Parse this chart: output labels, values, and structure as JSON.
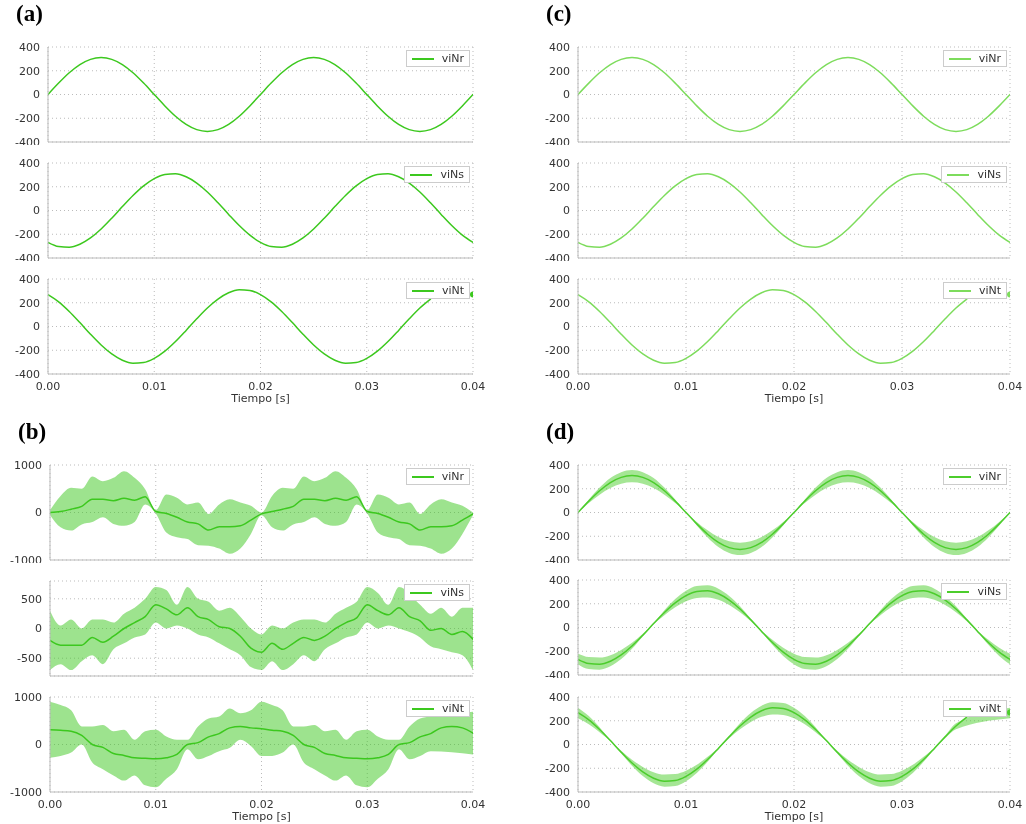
{
  "chart_data": [
    {
      "type": "line",
      "title": "(a)",
      "x": [
        0,
        0.001,
        0.002,
        0.003,
        0.004,
        0.005,
        0.006,
        0.007,
        0.008,
        0.009,
        0.01,
        0.011,
        0.012,
        0.013,
        0.014,
        0.015,
        0.016,
        0.017,
        0.018,
        0.019,
        0.02,
        0.021,
        0.022,
        0.023,
        0.024,
        0.025,
        0.026,
        0.027,
        0.028,
        0.029,
        0.03,
        0.031,
        0.032,
        0.033,
        0.034,
        0.035,
        0.036,
        0.037,
        0.038,
        0.039,
        0.04
      ],
      "xlim": [
        0,
        0.04
      ],
      "xticks": [
        0,
        0.01,
        0.02,
        0.03,
        0.04
      ],
      "ylim": [
        -400,
        400
      ],
      "yticks": [
        -400,
        -200,
        0,
        200,
        400
      ],
      "grid": true,
      "legend": "top right",
      "tick_labels": "y",
      "series": [
        {
          "name": "viNr",
          "color": "#3cc81e",
          "values": [
            0,
            96,
            183,
            252,
            296,
            311,
            296,
            252,
            183,
            96,
            0,
            -96,
            -183,
            -252,
            -296,
            -311,
            -296,
            -252,
            -183,
            -96,
            0,
            96,
            183,
            252,
            296,
            311,
            296,
            252,
            183,
            96,
            0,
            -96,
            -183,
            -252,
            -296,
            -311,
            -296,
            -252,
            -183,
            -96,
            0
          ]
        }
      ]
    },
    {
      "type": "line",
      "x": [
        0,
        0.001,
        0.002,
        0.003,
        0.004,
        0.005,
        0.006,
        0.007,
        0.008,
        0.009,
        0.01,
        0.011,
        0.012,
        0.013,
        0.014,
        0.015,
        0.016,
        0.017,
        0.018,
        0.019,
        0.02,
        0.021,
        0.022,
        0.023,
        0.024,
        0.025,
        0.026,
        0.027,
        0.028,
        0.029,
        0.03,
        0.031,
        0.032,
        0.033,
        0.034,
        0.035,
        0.036,
        0.037,
        0.038,
        0.039,
        0.04
      ],
      "xlim": [
        0,
        0.04
      ],
      "xticks": [
        0,
        0.01,
        0.02,
        0.03,
        0.04
      ],
      "ylim": [
        -400,
        400
      ],
      "yticks": [
        -400,
        -200,
        0,
        200,
        400
      ],
      "grid": true,
      "legend": "top right",
      "tick_labels": "y",
      "series": [
        {
          "name": "viNs",
          "color": "#3cc81e",
          "values": [
            -269,
            -304,
            -309,
            -284,
            -231,
            -156,
            -65,
            33,
            127,
            208,
            269,
            304,
            309,
            284,
            231,
            156,
            65,
            -33,
            -127,
            -208,
            -269,
            -304,
            -309,
            -284,
            -231,
            -156,
            -65,
            33,
            127,
            208,
            269,
            304,
            309,
            284,
            231,
            156,
            65,
            -33,
            -127,
            -208,
            -269
          ]
        }
      ]
    },
    {
      "type": "line",
      "xlabel": "Tiempo [s]",
      "x": [
        0,
        0.001,
        0.002,
        0.003,
        0.004,
        0.005,
        0.006,
        0.007,
        0.008,
        0.009,
        0.01,
        0.011,
        0.012,
        0.013,
        0.014,
        0.015,
        0.016,
        0.017,
        0.018,
        0.019,
        0.02,
        0.021,
        0.022,
        0.023,
        0.024,
        0.025,
        0.026,
        0.027,
        0.028,
        0.029,
        0.03,
        0.031,
        0.032,
        0.033,
        0.034,
        0.035,
        0.036,
        0.037,
        0.038,
        0.039,
        0.04
      ],
      "xlim": [
        0,
        0.04
      ],
      "xticks": [
        {
          "value": 0,
          "label": "0.00"
        },
        {
          "value": 0.01,
          "label": "0.01"
        },
        {
          "value": 0.02,
          "label": "0.02"
        },
        {
          "value": 0.03,
          "label": "0.03"
        },
        {
          "value": 0.04,
          "label": "0.04"
        }
      ],
      "ylim": [
        -400,
        400
      ],
      "yticks": [
        -400,
        -200,
        0,
        200,
        400
      ],
      "grid": true,
      "legend": "top right",
      "series": [
        {
          "name": "viNt",
          "color": "#3cc81e",
          "values": [
            269,
            208,
            127,
            33,
            -65,
            -156,
            -231,
            -284,
            -309,
            -304,
            -269,
            -208,
            -127,
            -33,
            65,
            156,
            231,
            284,
            309,
            304,
            269,
            208,
            127,
            33,
            -65,
            -156,
            -231,
            -284,
            -309,
            -304,
            -269,
            -208,
            -127,
            -33,
            65,
            156,
            231,
            null,
            null,
            null,
            269
          ]
        }
      ]
    },
    {
      "type": "line",
      "title": "(c)",
      "x": [
        0,
        0.001,
        0.002,
        0.003,
        0.004,
        0.005,
        0.006,
        0.007,
        0.008,
        0.009,
        0.01,
        0.011,
        0.012,
        0.013,
        0.014,
        0.015,
        0.016,
        0.017,
        0.018,
        0.019,
        0.02,
        0.021,
        0.022,
        0.023,
        0.024,
        0.025,
        0.026,
        0.027,
        0.028,
        0.029,
        0.03,
        0.031,
        0.032,
        0.033,
        0.034,
        0.035,
        0.036,
        0.037,
        0.038,
        0.039,
        0.04
      ],
      "xlim": [
        0,
        0.04
      ],
      "xticks": [
        0,
        0.01,
        0.02,
        0.03,
        0.04
      ],
      "ylim": [
        -400,
        400
      ],
      "yticks": [
        -400,
        -200,
        0,
        200,
        400
      ],
      "grid": true,
      "legend": "top right",
      "tick_labels": "y",
      "series": [
        {
          "name": "viNr",
          "color": "#7ddc5c",
          "values": [
            0,
            96,
            183,
            252,
            296,
            311,
            296,
            252,
            183,
            96,
            0,
            -96,
            -183,
            -252,
            -296,
            -311,
            -296,
            -252,
            -183,
            -96,
            0,
            96,
            183,
            252,
            296,
            311,
            296,
            252,
            183,
            96,
            0,
            -96,
            -183,
            -252,
            -296,
            -311,
            -296,
            -252,
            -183,
            -96,
            0
          ]
        }
      ]
    },
    {
      "type": "line",
      "x": [
        0,
        0.001,
        0.002,
        0.003,
        0.004,
        0.005,
        0.006,
        0.007,
        0.008,
        0.009,
        0.01,
        0.011,
        0.012,
        0.013,
        0.014,
        0.015,
        0.016,
        0.017,
        0.018,
        0.019,
        0.02,
        0.021,
        0.022,
        0.023,
        0.024,
        0.025,
        0.026,
        0.027,
        0.028,
        0.029,
        0.03,
        0.031,
        0.032,
        0.033,
        0.034,
        0.035,
        0.036,
        0.037,
        0.038,
        0.039,
        0.04
      ],
      "xlim": [
        0,
        0.04
      ],
      "xticks": [
        0,
        0.01,
        0.02,
        0.03,
        0.04
      ],
      "ylim": [
        -400,
        400
      ],
      "yticks": [
        -400,
        -200,
        0,
        200,
        400
      ],
      "grid": true,
      "legend": "top right",
      "tick_labels": "y",
      "series": [
        {
          "name": "viNs",
          "color": "#7ddc5c",
          "values": [
            -269,
            -304,
            -309,
            -284,
            -231,
            -156,
            -65,
            33,
            127,
            208,
            269,
            304,
            309,
            284,
            231,
            156,
            65,
            -33,
            -127,
            -208,
            -269,
            -304,
            -309,
            -284,
            -231,
            -156,
            -65,
            33,
            127,
            208,
            269,
            304,
            309,
            284,
            231,
            156,
            65,
            -33,
            -127,
            -208,
            -269
          ]
        }
      ]
    },
    {
      "type": "line",
      "xlabel": "Tiempo [s]",
      "x": [
        0,
        0.001,
        0.002,
        0.003,
        0.004,
        0.005,
        0.006,
        0.007,
        0.008,
        0.009,
        0.01,
        0.011,
        0.012,
        0.013,
        0.014,
        0.015,
        0.016,
        0.017,
        0.018,
        0.019,
        0.02,
        0.021,
        0.022,
        0.023,
        0.024,
        0.025,
        0.026,
        0.027,
        0.028,
        0.029,
        0.03,
        0.031,
        0.032,
        0.033,
        0.034,
        0.035,
        0.036,
        0.037,
        0.038,
        0.039,
        0.04
      ],
      "xlim": [
        0,
        0.04
      ],
      "xticks": [
        {
          "value": 0,
          "label": "0.00"
        },
        {
          "value": 0.01,
          "label": "0.01"
        },
        {
          "value": 0.02,
          "label": "0.02"
        },
        {
          "value": 0.03,
          "label": "0.03"
        },
        {
          "value": 0.04,
          "label": "0.04"
        }
      ],
      "ylim": [
        -400,
        400
      ],
      "yticks": [
        -400,
        -200,
        0,
        200,
        400
      ],
      "grid": true,
      "legend": "top right",
      "series": [
        {
          "name": "viNt",
          "color": "#7ddc5c",
          "values": [
            269,
            208,
            127,
            33,
            -65,
            -156,
            -231,
            -284,
            -309,
            -304,
            -269,
            -208,
            -127,
            -33,
            65,
            156,
            231,
            284,
            309,
            304,
            269,
            208,
            127,
            33,
            -65,
            -156,
            -231,
            -284,
            -309,
            -304,
            -269,
            -208,
            -127,
            -33,
            65,
            156,
            231,
            null,
            null,
            null,
            269
          ]
        }
      ]
    },
    {
      "type": "line",
      "title": "(b)",
      "x": [
        0,
        0.001,
        0.002,
        0.003,
        0.004,
        0.005,
        0.006,
        0.007,
        0.008,
        0.009,
        0.01,
        0.011,
        0.012,
        0.013,
        0.014,
        0.015,
        0.016,
        0.017,
        0.018,
        0.019,
        0.02,
        0.021,
        0.022,
        0.023,
        0.024,
        0.025,
        0.026,
        0.027,
        0.028,
        0.029,
        0.03,
        0.031,
        0.032,
        0.033,
        0.034,
        0.035,
        0.036,
        0.037,
        0.038,
        0.039,
        0.04
      ],
      "xlim": [
        0,
        0.04
      ],
      "xticks": [
        0,
        0.01,
        0.02,
        0.03,
        0.04
      ],
      "ylim": [
        -1000,
        1000
      ],
      "yticks": [
        -1000,
        0,
        1000
      ],
      "grid": true,
      "legend": "top right",
      "tick_labels": "y",
      "series": [
        {
          "name": "viNr",
          "color": "#3cc81e",
          "values": [
            0,
            20,
            70,
            130,
            280,
            280,
            250,
            300,
            260,
            330,
            20,
            -20,
            -100,
            -200,
            -240,
            -370,
            -300,
            -300,
            -280,
            -160,
            -30,
            20,
            70,
            130,
            280,
            280,
            250,
            300,
            260,
            330,
            20,
            -20,
            -100,
            -200,
            -240,
            -370,
            -300,
            -300,
            -280,
            -160,
            -30
          ],
          "lower": [
            -50,
            -310,
            -380,
            -250,
            -200,
            -100,
            -240,
            -280,
            -200,
            170,
            -20,
            -420,
            -520,
            -560,
            -690,
            -700,
            -760,
            -870,
            -760,
            -450,
            -60,
            -310,
            -380,
            -250,
            -200,
            -100,
            -240,
            -280,
            -200,
            170,
            -20,
            -420,
            -520,
            -560,
            -690,
            -700,
            -760,
            -870,
            -760,
            -450,
            -60
          ],
          "upper": [
            50,
            350,
            520,
            500,
            760,
            660,
            730,
            870,
            730,
            490,
            50,
            380,
            310,
            170,
            210,
            -30,
            170,
            280,
            210,
            140,
            0,
            350,
            520,
            500,
            760,
            660,
            730,
            870,
            730,
            490,
            50,
            380,
            310,
            170,
            210,
            -30,
            170,
            280,
            210,
            140,
            0
          ]
        }
      ]
    },
    {
      "type": "line",
      "x": [
        0,
        0.001,
        0.002,
        0.003,
        0.004,
        0.005,
        0.006,
        0.007,
        0.008,
        0.009,
        0.01,
        0.011,
        0.012,
        0.013,
        0.014,
        0.015,
        0.016,
        0.017,
        0.018,
        0.019,
        0.02,
        0.021,
        0.022,
        0.023,
        0.024,
        0.025,
        0.026,
        0.027,
        0.028,
        0.029,
        0.03,
        0.031,
        0.032,
        0.033,
        0.034,
        0.035,
        0.036,
        0.037,
        0.038,
        0.039,
        0.04
      ],
      "xlim": [
        0,
        0.04
      ],
      "xticks": [
        0,
        0.01,
        0.02,
        0.03,
        0.04
      ],
      "ylim": [
        -800,
        800
      ],
      "yticks": [
        -500,
        0,
        500
      ],
      "grid": true,
      "legend": "top right",
      "tick_labels": "y",
      "series": [
        {
          "name": "viNs",
          "color": "#3cc81e",
          "values": [
            -200,
            -280,
            -280,
            -280,
            -150,
            -230,
            -130,
            0,
            100,
            200,
            400,
            330,
            230,
            350,
            200,
            150,
            30,
            0,
            -130,
            -330,
            -400,
            -250,
            -350,
            -250,
            -150,
            -200,
            -130,
            0,
            100,
            180,
            400,
            300,
            230,
            350,
            200,
            130,
            -30,
            0,
            -100,
            -50,
            -180
          ],
          "lower": [
            -700,
            -600,
            -700,
            -550,
            -450,
            -600,
            -350,
            -250,
            -150,
            -100,
            100,
            0,
            50,
            0,
            -100,
            -150,
            -250,
            -350,
            -450,
            -650,
            -700,
            -550,
            -700,
            -600,
            -450,
            -550,
            -350,
            -250,
            -150,
            -100,
            100,
            0,
            50,
            0,
            null,
            -150,
            -300,
            -350,
            -400,
            -450,
            -700
          ],
          "upper": [
            300,
            50,
            150,
            0,
            150,
            150,
            100,
            250,
            350,
            500,
            700,
            650,
            400,
            700,
            500,
            450,
            300,
            350,
            200,
            0,
            -100,
            50,
            0,
            100,
            150,
            150,
            100,
            250,
            350,
            450,
            700,
            600,
            400,
            700,
            null,
            400,
            250,
            350,
            200,
            350,
            350
          ]
        }
      ]
    },
    {
      "type": "line",
      "xlabel": "Tiempo [s]",
      "x": [
        0,
        0.001,
        0.002,
        0.003,
        0.004,
        0.005,
        0.006,
        0.007,
        0.008,
        0.009,
        0.01,
        0.011,
        0.012,
        0.013,
        0.014,
        0.015,
        0.016,
        0.017,
        0.018,
        0.019,
        0.02,
        0.021,
        0.022,
        0.023,
        0.024,
        0.025,
        0.026,
        0.027,
        0.028,
        0.029,
        0.03,
        0.031,
        0.032,
        0.033,
        0.034,
        0.035,
        0.036,
        0.037,
        0.038,
        0.039,
        0.04
      ],
      "xlim": [
        0,
        0.04
      ],
      "xticks": [
        {
          "value": 0,
          "label": "0.00"
        },
        {
          "value": 0.01,
          "label": "0.01"
        },
        {
          "value": 0.02,
          "label": "0.02"
        },
        {
          "value": 0.03,
          "label": "0.03"
        },
        {
          "value": 0.04,
          "label": "0.04"
        }
      ],
      "ylim": [
        -1000,
        1000
      ],
      "yticks": [
        -1000,
        0,
        1000
      ],
      "grid": true,
      "legend": "top right",
      "series": [
        {
          "name": "viNt",
          "color": "#3cc81e",
          "values": [
            310,
            300,
            280,
            190,
            0,
            -60,
            -190,
            -230,
            -280,
            -290,
            -300,
            -280,
            -210,
            0,
            40,
            160,
            230,
            350,
            380,
            350,
            330,
            300,
            280,
            190,
            0,
            -60,
            -190,
            -230,
            -280,
            -290,
            -300,
            -280,
            -210,
            0,
            40,
            160,
            230,
            350,
            380,
            350,
            240
          ],
          "lower": [
            -280,
            -240,
            -170,
            0,
            -380,
            -520,
            -650,
            -760,
            -650,
            -860,
            -900,
            -720,
            -520,
            -100,
            -310,
            -240,
            -140,
            -70,
            100,
            -30,
            -240,
            -240,
            -170,
            0,
            -380,
            -520,
            -650,
            -760,
            -650,
            -860,
            -900,
            -720,
            -520,
            -100,
            -310,
            -240,
            -140,
            null,
            null,
            null,
            -210
          ],
          "upper": [
            900,
            830,
            720,
            380,
            380,
            410,
            280,
            310,
            100,
            280,
            310,
            170,
            100,
            100,
            380,
            550,
            590,
            760,
            660,
            720,
            900,
            830,
            720,
            380,
            380,
            410,
            280,
            310,
            100,
            280,
            310,
            170,
            100,
            100,
            380,
            550,
            590,
            null,
            null,
            null,
            690
          ]
        }
      ]
    },
    {
      "type": "line",
      "title": "(d)",
      "x": [
        0,
        0.001,
        0.002,
        0.003,
        0.004,
        0.005,
        0.006,
        0.007,
        0.008,
        0.009,
        0.01,
        0.011,
        0.012,
        0.013,
        0.014,
        0.015,
        0.016,
        0.017,
        0.018,
        0.019,
        0.02,
        0.021,
        0.022,
        0.023,
        0.024,
        0.025,
        0.026,
        0.027,
        0.028,
        0.029,
        0.03,
        0.031,
        0.032,
        0.033,
        0.034,
        0.035,
        0.036,
        0.037,
        0.038,
        0.039,
        0.04
      ],
      "xlim": [
        0,
        0.04
      ],
      "xticks": [
        0,
        0.01,
        0.02,
        0.03,
        0.04
      ],
      "ylim": [
        -400,
        400
      ],
      "yticks": [
        -400,
        -200,
        0,
        200,
        400
      ],
      "grid": true,
      "legend": "top right",
      "tick_labels": "y",
      "series": [
        {
          "name": "viNr",
          "color": "#4ccd2c",
          "values": [
            0,
            96,
            183,
            252,
            296,
            311,
            296,
            252,
            183,
            96,
            0,
            -96,
            -183,
            -252,
            -296,
            -311,
            -296,
            -252,
            -183,
            -96,
            0,
            96,
            183,
            252,
            296,
            311,
            296,
            252,
            183,
            96,
            0,
            -96,
            -183,
            -252,
            -296,
            -311,
            -296,
            -252,
            -183,
            -96,
            0
          ],
          "lower": [
            0,
            79,
            150,
            207,
            243,
            255,
            243,
            207,
            150,
            79,
            0,
            -110,
            -210,
            -290,
            -340,
            -358,
            -340,
            -290,
            -210,
            -110,
            0,
            79,
            150,
            207,
            243,
            255,
            243,
            207,
            150,
            79,
            0,
            -110,
            -210,
            -290,
            -340,
            -358,
            -340,
            -290,
            -210,
            -110,
            0
          ],
          "upper": [
            0,
            110,
            210,
            290,
            340,
            358,
            340,
            290,
            210,
            110,
            0,
            -79,
            -150,
            -207,
            -243,
            -255,
            -243,
            -207,
            -150,
            -79,
            0,
            110,
            210,
            290,
            340,
            358,
            340,
            290,
            210,
            110,
            0,
            -79,
            -150,
            -207,
            -243,
            -255,
            -243,
            -207,
            -150,
            -79,
            0
          ]
        }
      ]
    },
    {
      "type": "line",
      "x": [
        0,
        0.001,
        0.002,
        0.003,
        0.004,
        0.005,
        0.006,
        0.007,
        0.008,
        0.009,
        0.01,
        0.011,
        0.012,
        0.013,
        0.014,
        0.015,
        0.016,
        0.017,
        0.018,
        0.019,
        0.02,
        0.021,
        0.022,
        0.023,
        0.024,
        0.025,
        0.026,
        0.027,
        0.028,
        0.029,
        0.03,
        0.031,
        0.032,
        0.033,
        0.034,
        0.035,
        0.036,
        0.037,
        0.038,
        0.039,
        0.04
      ],
      "xlim": [
        0,
        0.04
      ],
      "xticks": [
        0,
        0.01,
        0.02,
        0.03,
        0.04
      ],
      "ylim": [
        -400,
        400
      ],
      "yticks": [
        -400,
        -200,
        0,
        200,
        400
      ],
      "grid": true,
      "legend": "top right",
      "tick_labels": "y",
      "series": [
        {
          "name": "viNs",
          "color": "#4ccd2c",
          "values": [
            -269,
            -304,
            -309,
            -284,
            -231,
            -156,
            -65,
            33,
            127,
            208,
            269,
            304,
            309,
            284,
            231,
            156,
            65,
            -33,
            -127,
            -208,
            -269,
            -304,
            -309,
            -284,
            -231,
            -156,
            -65,
            33,
            127,
            208,
            269,
            304,
            309,
            284,
            231,
            156,
            65,
            -33,
            -127,
            -208,
            -269
          ],
          "lower": [
            -309,
            -350,
            -355,
            -327,
            -266,
            -179,
            -75,
            27,
            104,
            171,
            221,
            249,
            253,
            233,
            189,
            128,
            53,
            -38,
            -146,
            -239,
            -309,
            -350,
            -355,
            -327,
            -266,
            -179,
            -75,
            27,
            104,
            171,
            221,
            249,
            253,
            233,
            null,
            128,
            53,
            -38,
            -146,
            -239,
            -309
          ],
          "upper": [
            -221,
            -249,
            -253,
            -233,
            -189,
            -128,
            -53,
            38,
            146,
            239,
            309,
            350,
            355,
            327,
            266,
            179,
            75,
            -27,
            -104,
            -171,
            -221,
            -249,
            -253,
            -233,
            -189,
            -128,
            -53,
            38,
            146,
            239,
            309,
            350,
            355,
            327,
            null,
            179,
            75,
            -27,
            -104,
            -171,
            -221
          ]
        }
      ]
    },
    {
      "type": "line",
      "xlabel": "Tiempo [s]",
      "x": [
        0,
        0.001,
        0.002,
        0.003,
        0.004,
        0.005,
        0.006,
        0.007,
        0.008,
        0.009,
        0.01,
        0.011,
        0.012,
        0.013,
        0.014,
        0.015,
        0.016,
        0.017,
        0.018,
        0.019,
        0.02,
        0.021,
        0.022,
        0.023,
        0.024,
        0.025,
        0.026,
        0.027,
        0.028,
        0.029,
        0.03,
        0.031,
        0.032,
        0.033,
        0.034,
        0.035,
        0.036,
        0.037,
        0.038,
        0.039,
        0.04
      ],
      "xlim": [
        0,
        0.04
      ],
      "xticks": [
        {
          "value": 0,
          "label": "0.00"
        },
        {
          "value": 0.01,
          "label": "0.01"
        },
        {
          "value": 0.02,
          "label": "0.02"
        },
        {
          "value": 0.03,
          "label": "0.03"
        },
        {
          "value": 0.04,
          "label": "0.04"
        }
      ],
      "ylim": [
        -400,
        400
      ],
      "yticks": [
        -400,
        -200,
        0,
        200,
        400
      ],
      "grid": true,
      "legend": "top right",
      "series": [
        {
          "name": "viNt",
          "color": "#4ccd2c",
          "values": [
            269,
            208,
            127,
            33,
            -65,
            -156,
            -231,
            -284,
            -309,
            -304,
            -269,
            -208,
            -127,
            -33,
            65,
            156,
            231,
            284,
            309,
            304,
            269,
            208,
            127,
            33,
            -65,
            -156,
            -231,
            -284,
            -309,
            -304,
            -269,
            -208,
            -127,
            -33,
            65,
            156,
            231,
            null,
            null,
            null,
            269
          ],
          "lower": [
            221,
            171,
            104,
            27,
            -75,
            -179,
            -266,
            -327,
            -355,
            -350,
            -309,
            -239,
            -146,
            -38,
            53,
            128,
            189,
            233,
            253,
            249,
            221,
            171,
            104,
            27,
            -75,
            -179,
            -266,
            -327,
            -355,
            -350,
            -309,
            -239,
            -146,
            -38,
            53,
            128,
            null,
            null,
            null,
            null,
            221
          ],
          "upper": [
            309,
            239,
            146,
            38,
            -53,
            -128,
            -189,
            -233,
            -253,
            -249,
            -221,
            -171,
            -104,
            -27,
            75,
            179,
            266,
            327,
            355,
            350,
            309,
            239,
            146,
            38,
            -53,
            -128,
            -189,
            -233,
            -253,
            -249,
            -221,
            -171,
            -104,
            -27,
            75,
            179,
            null,
            null,
            null,
            null,
            309
          ]
        }
      ]
    }
  ]
}
